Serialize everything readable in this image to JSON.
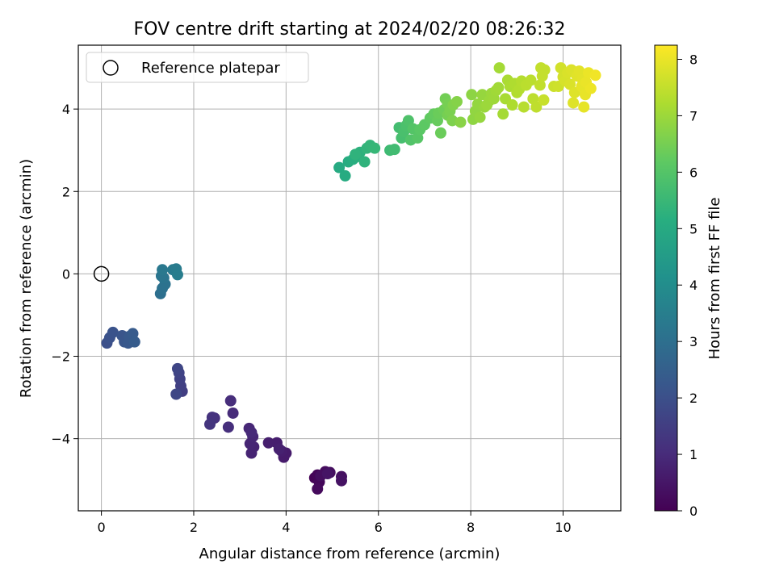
{
  "chart_data": {
    "type": "scatter",
    "title": "FOV centre drift starting at 2024/02/20 08:26:32",
    "xlabel": "Angular distance from reference (arcmin)",
    "ylabel": "Rotation from reference (arcmin)",
    "xlim": [
      -0.5,
      11.25
    ],
    "ylim": [
      -5.75,
      5.55
    ],
    "xticks": [
      0,
      2,
      4,
      6,
      8,
      10
    ],
    "yticks": [
      -4,
      -2,
      0,
      2,
      4
    ],
    "grid": true,
    "legend": {
      "placement": "top-left",
      "entries": [
        "Reference platepar"
      ]
    },
    "reference_point": {
      "x": 0,
      "y": 0
    },
    "colorbar": {
      "label": "Hours from first FF file",
      "range": [
        0,
        8.25
      ],
      "ticks": [
        0,
        1,
        2,
        3,
        4,
        5,
        6,
        7,
        8
      ],
      "colormap": "viridis"
    },
    "points": [
      {
        "x": 4.62,
        "y": -4.95,
        "c": 0.05
      },
      {
        "x": 4.68,
        "y": -4.88,
        "c": 0.1
      },
      {
        "x": 4.72,
        "y": -5.05,
        "c": 0.15
      },
      {
        "x": 4.68,
        "y": -5.22,
        "c": 0.2
      },
      {
        "x": 4.85,
        "y": -4.8,
        "c": 0.25
      },
      {
        "x": 4.95,
        "y": -4.82,
        "c": 0.3
      },
      {
        "x": 5.2,
        "y": -4.92,
        "c": 0.35
      },
      {
        "x": 5.2,
        "y": -5.02,
        "c": 0.4
      },
      {
        "x": 4.9,
        "y": -4.85,
        "c": 0.45
      },
      {
        "x": 4.75,
        "y": -4.9,
        "c": 0.3
      },
      {
        "x": 3.95,
        "y": -4.45,
        "c": 0.6
      },
      {
        "x": 4.0,
        "y": -4.35,
        "c": 0.62
      },
      {
        "x": 3.9,
        "y": -4.3,
        "c": 0.65
      },
      {
        "x": 3.8,
        "y": -4.1,
        "c": 0.68
      },
      {
        "x": 3.62,
        "y": -4.1,
        "c": 0.7
      },
      {
        "x": 3.85,
        "y": -4.25,
        "c": 0.75
      },
      {
        "x": 3.3,
        "y": -4.2,
        "c": 0.8
      },
      {
        "x": 3.25,
        "y": -4.35,
        "c": 0.82
      },
      {
        "x": 3.22,
        "y": -4.12,
        "c": 0.85
      },
      {
        "x": 3.28,
        "y": -3.95,
        "c": 0.88
      },
      {
        "x": 3.2,
        "y": -3.75,
        "c": 0.9
      },
      {
        "x": 3.25,
        "y": -3.85,
        "c": 0.95
      },
      {
        "x": 2.85,
        "y": -3.38,
        "c": 1.0
      },
      {
        "x": 2.8,
        "y": -3.08,
        "c": 1.05
      },
      {
        "x": 2.75,
        "y": -3.72,
        "c": 1.1
      },
      {
        "x": 2.45,
        "y": -3.5,
        "c": 1.15
      },
      {
        "x": 2.4,
        "y": -3.48,
        "c": 1.2
      },
      {
        "x": 2.35,
        "y": -3.65,
        "c": 1.25
      },
      {
        "x": 1.75,
        "y": -2.85,
        "c": 1.5
      },
      {
        "x": 1.72,
        "y": -2.72,
        "c": 1.55
      },
      {
        "x": 1.7,
        "y": -2.55,
        "c": 1.6
      },
      {
        "x": 1.68,
        "y": -2.4,
        "c": 1.65
      },
      {
        "x": 1.65,
        "y": -2.3,
        "c": 1.7
      },
      {
        "x": 1.62,
        "y": -2.92,
        "c": 1.75
      },
      {
        "x": 0.12,
        "y": -1.68,
        "c": 2.0
      },
      {
        "x": 0.18,
        "y": -1.55,
        "c": 2.05
      },
      {
        "x": 0.25,
        "y": -1.42,
        "c": 2.1
      },
      {
        "x": 0.45,
        "y": -1.5,
        "c": 2.15
      },
      {
        "x": 0.5,
        "y": -1.65,
        "c": 2.2
      },
      {
        "x": 0.58,
        "y": -1.68,
        "c": 2.25
      },
      {
        "x": 0.6,
        "y": -1.52,
        "c": 2.3
      },
      {
        "x": 0.68,
        "y": -1.45,
        "c": 2.35
      },
      {
        "x": 0.72,
        "y": -1.65,
        "c": 2.4
      },
      {
        "x": 1.28,
        "y": -0.48,
        "c": 3.0
      },
      {
        "x": 1.32,
        "y": -0.35,
        "c": 3.05
      },
      {
        "x": 1.38,
        "y": -0.25,
        "c": 3.1
      },
      {
        "x": 1.35,
        "y": -0.1,
        "c": 3.15
      },
      {
        "x": 1.3,
        "y": -0.05,
        "c": 3.2
      },
      {
        "x": 1.32,
        "y": 0.1,
        "c": 3.3
      },
      {
        "x": 1.55,
        "y": 0.1,
        "c": 3.35
      },
      {
        "x": 1.62,
        "y": 0.12,
        "c": 3.4
      },
      {
        "x": 1.65,
        "y": -0.02,
        "c": 3.45
      },
      {
        "x": 5.15,
        "y": 2.58,
        "c": 5.0
      },
      {
        "x": 5.28,
        "y": 2.38,
        "c": 5.05
      },
      {
        "x": 5.35,
        "y": 2.72,
        "c": 5.1
      },
      {
        "x": 5.45,
        "y": 2.78,
        "c": 5.15
      },
      {
        "x": 5.55,
        "y": 2.85,
        "c": 5.2
      },
      {
        "x": 5.6,
        "y": 2.95,
        "c": 5.25
      },
      {
        "x": 5.7,
        "y": 2.72,
        "c": 5.3
      },
      {
        "x": 5.75,
        "y": 3.05,
        "c": 5.35
      },
      {
        "x": 5.82,
        "y": 3.12,
        "c": 5.4
      },
      {
        "x": 5.92,
        "y": 3.05,
        "c": 5.45
      },
      {
        "x": 5.5,
        "y": 2.9,
        "c": 5.3
      },
      {
        "x": 6.25,
        "y": 3.0,
        "c": 5.6
      },
      {
        "x": 6.35,
        "y": 3.02,
        "c": 5.65
      },
      {
        "x": 6.45,
        "y": 3.55,
        "c": 5.7
      },
      {
        "x": 6.5,
        "y": 3.3,
        "c": 5.75
      },
      {
        "x": 6.55,
        "y": 3.45,
        "c": 5.8
      },
      {
        "x": 6.6,
        "y": 3.6,
        "c": 5.85
      },
      {
        "x": 6.65,
        "y": 3.72,
        "c": 5.9
      },
      {
        "x": 6.7,
        "y": 3.25,
        "c": 5.95
      },
      {
        "x": 6.75,
        "y": 3.52,
        "c": 6.0
      },
      {
        "x": 6.85,
        "y": 3.3,
        "c": 6.05
      },
      {
        "x": 6.9,
        "y": 3.5,
        "c": 6.1
      },
      {
        "x": 7.0,
        "y": 3.62,
        "c": 6.15
      },
      {
        "x": 7.12,
        "y": 3.78,
        "c": 6.2
      },
      {
        "x": 7.2,
        "y": 3.88,
        "c": 6.25
      },
      {
        "x": 7.28,
        "y": 3.72,
        "c": 6.3
      },
      {
        "x": 7.35,
        "y": 3.42,
        "c": 6.35
      },
      {
        "x": 7.42,
        "y": 3.98,
        "c": 6.4
      },
      {
        "x": 7.45,
        "y": 4.25,
        "c": 6.45
      },
      {
        "x": 7.5,
        "y": 3.85,
        "c": 6.5
      },
      {
        "x": 7.55,
        "y": 3.95,
        "c": 6.55
      },
      {
        "x": 7.6,
        "y": 3.72,
        "c": 6.6
      },
      {
        "x": 7.62,
        "y": 4.1,
        "c": 6.65
      },
      {
        "x": 7.7,
        "y": 4.18,
        "c": 6.7
      },
      {
        "x": 7.78,
        "y": 3.68,
        "c": 6.75
      },
      {
        "x": 7.3,
        "y": 3.9,
        "c": 6.35
      },
      {
        "x": 7.5,
        "y": 4.12,
        "c": 6.5
      },
      {
        "x": 8.02,
        "y": 4.35,
        "c": 6.8
      },
      {
        "x": 8.05,
        "y": 3.75,
        "c": 6.82
      },
      {
        "x": 8.1,
        "y": 3.95,
        "c": 6.85
      },
      {
        "x": 8.15,
        "y": 4.12,
        "c": 6.88
      },
      {
        "x": 8.2,
        "y": 3.8,
        "c": 6.9
      },
      {
        "x": 8.25,
        "y": 4.35,
        "c": 6.92
      },
      {
        "x": 8.3,
        "y": 4.05,
        "c": 6.95
      },
      {
        "x": 8.4,
        "y": 4.2,
        "c": 6.98
      },
      {
        "x": 8.45,
        "y": 4.38,
        "c": 7.0
      },
      {
        "x": 8.5,
        "y": 4.25,
        "c": 7.02
      },
      {
        "x": 8.55,
        "y": 4.45,
        "c": 7.05
      },
      {
        "x": 8.6,
        "y": 4.52,
        "c": 7.08
      },
      {
        "x": 8.62,
        "y": 5.0,
        "c": 7.1
      },
      {
        "x": 8.7,
        "y": 3.88,
        "c": 7.12
      },
      {
        "x": 8.75,
        "y": 4.25,
        "c": 7.15
      },
      {
        "x": 8.8,
        "y": 4.7,
        "c": 7.18
      },
      {
        "x": 8.85,
        "y": 4.55,
        "c": 7.2
      },
      {
        "x": 8.9,
        "y": 4.1,
        "c": 7.22
      },
      {
        "x": 8.95,
        "y": 4.62,
        "c": 7.25
      },
      {
        "x": 9.0,
        "y": 4.4,
        "c": 7.28
      },
      {
        "x": 9.05,
        "y": 4.48,
        "c": 7.3
      },
      {
        "x": 9.1,
        "y": 4.68,
        "c": 7.32
      },
      {
        "x": 9.15,
        "y": 4.05,
        "c": 7.35
      },
      {
        "x": 9.2,
        "y": 4.58,
        "c": 7.38
      },
      {
        "x": 9.3,
        "y": 4.7,
        "c": 7.4
      },
      {
        "x": 9.35,
        "y": 4.25,
        "c": 7.42
      },
      {
        "x": 9.42,
        "y": 4.05,
        "c": 7.45
      },
      {
        "x": 9.5,
        "y": 4.58,
        "c": 7.48
      },
      {
        "x": 9.52,
        "y": 5.0,
        "c": 7.5
      },
      {
        "x": 9.55,
        "y": 4.8,
        "c": 7.52
      },
      {
        "x": 9.58,
        "y": 4.22,
        "c": 7.55
      },
      {
        "x": 8.35,
        "y": 4.1,
        "c": 7.0
      },
      {
        "x": 9.6,
        "y": 4.95,
        "c": 7.5
      },
      {
        "x": 9.8,
        "y": 4.55,
        "c": 7.6
      },
      {
        "x": 9.9,
        "y": 4.55,
        "c": 7.65
      },
      {
        "x": 9.95,
        "y": 5.0,
        "c": 7.7
      },
      {
        "x": 10.0,
        "y": 4.78,
        "c": 7.72
      },
      {
        "x": 10.05,
        "y": 4.68,
        "c": 7.75
      },
      {
        "x": 10.1,
        "y": 4.88,
        "c": 7.78
      },
      {
        "x": 10.15,
        "y": 4.6,
        "c": 7.8
      },
      {
        "x": 10.18,
        "y": 4.95,
        "c": 7.82
      },
      {
        "x": 10.22,
        "y": 4.15,
        "c": 7.85
      },
      {
        "x": 10.3,
        "y": 4.8,
        "c": 7.88
      },
      {
        "x": 10.35,
        "y": 4.92,
        "c": 7.9
      },
      {
        "x": 10.42,
        "y": 4.72,
        "c": 7.92
      },
      {
        "x": 10.45,
        "y": 4.05,
        "c": 7.95
      },
      {
        "x": 10.48,
        "y": 4.35,
        "c": 7.98
      },
      {
        "x": 10.5,
        "y": 4.65,
        "c": 8.0
      },
      {
        "x": 10.55,
        "y": 4.88,
        "c": 8.02
      },
      {
        "x": 10.6,
        "y": 4.5,
        "c": 8.05
      },
      {
        "x": 10.7,
        "y": 4.82,
        "c": 8.1
      },
      {
        "x": 10.25,
        "y": 4.4,
        "c": 7.85
      },
      {
        "x": 10.4,
        "y": 4.55,
        "c": 7.95
      }
    ]
  }
}
